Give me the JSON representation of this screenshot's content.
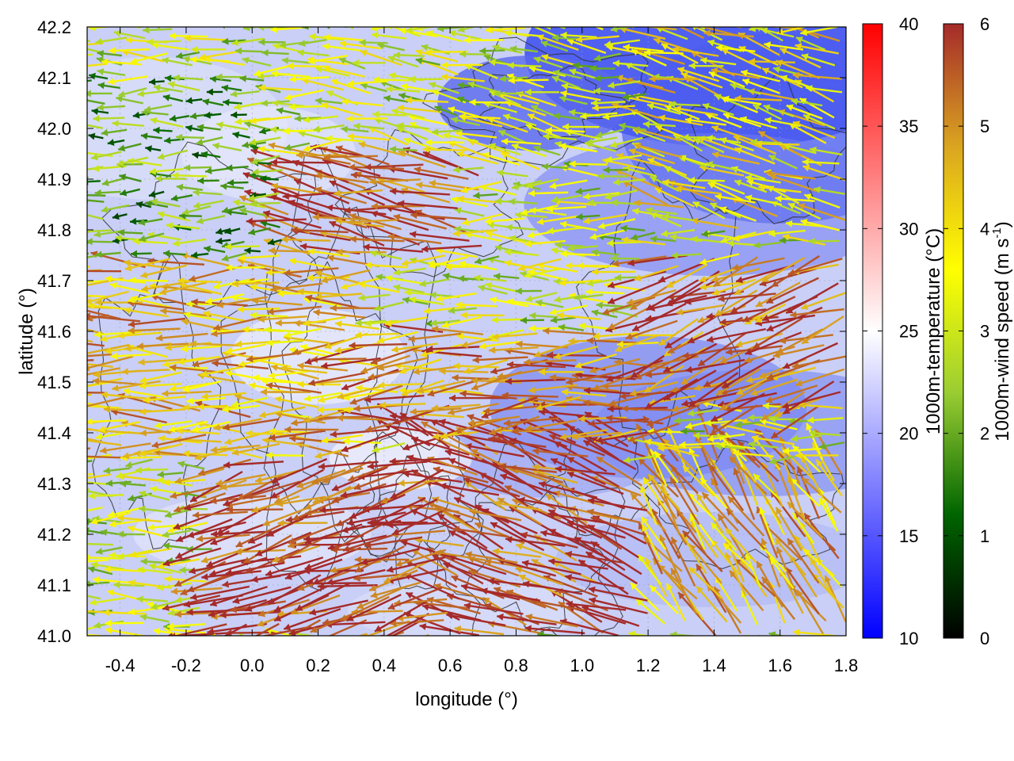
{
  "chart_data": {
    "type": "heatmap",
    "subtype": "temperature field with wind vectors and contours",
    "xlabel": "longitude (°)",
    "ylabel": "latitude (°)",
    "xlim": [
      -0.5,
      1.8
    ],
    "ylim": [
      41.0,
      42.2
    ],
    "x_ticks": [
      -0.4,
      -0.2,
      0.0,
      0.2,
      0.4,
      0.6,
      0.8,
      1.0,
      1.2,
      1.4,
      1.6,
      1.8
    ],
    "x_tick_labels": [
      "-0.4",
      "-0.2",
      "0.0",
      "0.2",
      "0.4",
      "0.6",
      "0.8",
      "1.0",
      "1.2",
      "1.4",
      "1.6",
      "1.8"
    ],
    "y_ticks": [
      41.0,
      41.1,
      41.2,
      41.3,
      41.4,
      41.5,
      41.6,
      41.7,
      41.8,
      41.9,
      42.0,
      42.1,
      42.2
    ],
    "y_tick_labels": [
      "41.0",
      "41.1",
      "41.2",
      "41.3",
      "41.4",
      "41.5",
      "41.6",
      "41.7",
      "41.8",
      "41.9",
      "42.0",
      "42.1",
      "42.2"
    ],
    "grid": true,
    "temperature_colorbar": {
      "label": "1000m-temperature (°C)",
      "range": [
        10,
        40
      ],
      "ticks": [
        10,
        15,
        20,
        25,
        30,
        35,
        40
      ],
      "tick_labels": [
        "10",
        "15",
        "20",
        "25",
        "30",
        "35",
        "40"
      ],
      "colors": [
        "#0000ff",
        "#ffffff",
        "#ff0000"
      ]
    },
    "wind_colorbar": {
      "label_prefix": "1000m-wind speed (m s",
      "label_exponent": "-1",
      "label_suffix": ")",
      "range": [
        0,
        6
      ],
      "ticks": [
        0,
        1,
        2,
        3,
        4,
        5,
        6
      ],
      "tick_labels": [
        "0",
        "1",
        "2",
        "3",
        "4",
        "5",
        "6"
      ],
      "colors": [
        "#000000",
        "#006400",
        "#9acd32",
        "#ffff00",
        "#daa520",
        "#a52a2a"
      ]
    },
    "wind_regions": [
      {
        "lon": [
          -0.1,
          0.6
        ],
        "lat": [
          41.0,
          41.35
        ],
        "speed": 6.0,
        "direction_deg": 195
      },
      {
        "lon": [
          0.5,
          1.2
        ],
        "lat": [
          41.0,
          41.4
        ],
        "speed": 5.8,
        "direction_deg": 160
      },
      {
        "lon": [
          1.1,
          1.8
        ],
        "lat": [
          41.0,
          41.35
        ],
        "speed": 4.5,
        "direction_deg": 125
      },
      {
        "lon": [
          0.3,
          1.3
        ],
        "lat": [
          41.4,
          41.6
        ],
        "speed": 5.0,
        "direction_deg": 185
      },
      {
        "lon": [
          -0.5,
          0.4
        ],
        "lat": [
          41.35,
          41.75
        ],
        "speed": 4.5,
        "direction_deg": 180
      },
      {
        "lon": [
          0.1,
          0.7
        ],
        "lat": [
          41.75,
          41.95
        ],
        "speed": 5.8,
        "direction_deg": 170
      },
      {
        "lon": [
          1.2,
          1.8
        ],
        "lat": [
          41.45,
          41.75
        ],
        "speed": 5.5,
        "direction_deg": 200
      },
      {
        "lon": [
          -0.5,
          0.1
        ],
        "lat": [
          41.7,
          42.1
        ],
        "speed": 2.0,
        "direction_deg": 180
      },
      {
        "lon": [
          0.3,
          1.1
        ],
        "lat": [
          41.9,
          42.2
        ],
        "speed": 3.0,
        "direction_deg": 170
      },
      {
        "lon": [
          1.2,
          1.8
        ],
        "lat": [
          41.8,
          42.2
        ],
        "speed": 3.8,
        "direction_deg": 165
      }
    ]
  }
}
